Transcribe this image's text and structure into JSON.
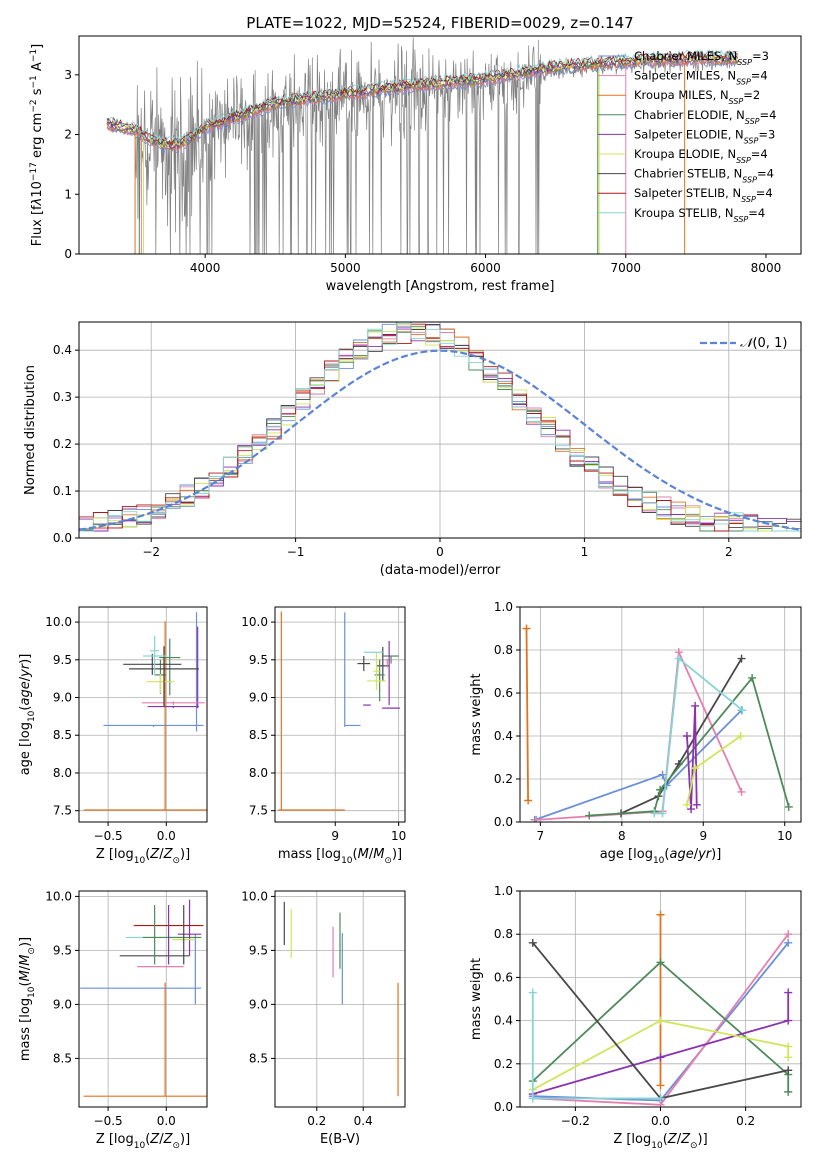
{
  "title": "PLATE=1022, MJD=52524, FIBERID=0029, z=0.147",
  "colors": {
    "grid": "#b0b0b0",
    "spectrum": "#808080",
    "normal": "#5b84d4"
  },
  "series_colors": [
    "#6a8fd8",
    "#e57fb0",
    "#e0731e",
    "#4d8a5a",
    "#8a32b0",
    "#cfe65a",
    "#484848",
    "#b01818",
    "#86d4d4"
  ],
  "chart_data": [
    {
      "id": "spectrum",
      "type": "line",
      "xlabel": "wavelength [Angstrom, rest frame]",
      "ylabel_html": "Flux [f<tspan font-style=\"italic\">λ</tspan>10<tspan baseline-shift=\"super\" font-size=\"9\">−17</tspan> erg cm<tspan baseline-shift=\"super\" font-size=\"9\">−2</tspan> s<tspan baseline-shift=\"super\" font-size=\"9\">−1</tspan> A<tspan baseline-shift=\"super\" font-size=\"9\">−1</tspan>]",
      "xlim": [
        3100,
        8250
      ],
      "ylim": [
        0,
        3.65
      ],
      "xticks": [
        4000,
        5000,
        6000,
        7000,
        8000
      ],
      "yticks": [
        0,
        1,
        2,
        3
      ],
      "grid": false,
      "legend_position": "top-right",
      "legend": [
        {
          "label_html": "Chabrier MILES, N<tspan baseline-shift=\"sub\" font-size=\"8\" font-style=\"italic\">SSP</tspan>=3"
        },
        {
          "label_html": "Salpeter MILES, N<tspan baseline-shift=\"sub\" font-size=\"8\" font-style=\"italic\">SSP</tspan>=4"
        },
        {
          "label_html": "Kroupa MILES, N<tspan baseline-shift=\"sub\" font-size=\"8\" font-style=\"italic\">SSP</tspan>=2"
        },
        {
          "label_html": "Chabrier ELODIE, N<tspan baseline-shift=\"sub\" font-size=\"8\" font-style=\"italic\">SSP</tspan>=4"
        },
        {
          "label_html": "Salpeter ELODIE, N<tspan baseline-shift=\"sub\" font-size=\"8\" font-style=\"italic\">SSP</tspan>=3"
        },
        {
          "label_html": "Kroupa ELODIE, N<tspan baseline-shift=\"sub\" font-size=\"8\" font-style=\"italic\">SSP</tspan>=4"
        },
        {
          "label_html": "Chabrier STELIB, N<tspan baseline-shift=\"sub\" font-size=\"8\" font-style=\"italic\">SSP</tspan>=4"
        },
        {
          "label_html": "Salpeter STELIB, N<tspan baseline-shift=\"sub\" font-size=\"8\" font-style=\"italic\">SSP</tspan>=4"
        },
        {
          "label_html": "Kroupa STELIB, N<tspan baseline-shift=\"sub\" font-size=\"8\" font-style=\"italic\">SSP</tspan>=4"
        }
      ],
      "continuum": [
        [
          3300,
          2.1
        ],
        [
          3400,
          2.05
        ],
        [
          3500,
          2.0
        ],
        [
          3600,
          1.85
        ],
        [
          3700,
          1.75
        ],
        [
          3800,
          1.75
        ],
        [
          3900,
          1.85
        ],
        [
          4000,
          2.05
        ],
        [
          4200,
          2.2
        ],
        [
          4500,
          2.45
        ],
        [
          5000,
          2.6
        ],
        [
          5500,
          2.75
        ],
        [
          6000,
          2.85
        ],
        [
          6500,
          3.05
        ],
        [
          7000,
          3.15
        ],
        [
          7500,
          3.2
        ],
        [
          7800,
          3.2
        ]
      ],
      "model_edges": [
        {
          "series": 2,
          "x": [
            3500,
            7420
          ]
        },
        {
          "series": 3,
          "x": [
            3530,
            6800
          ]
        },
        {
          "series": 1,
          "x": [
            3545,
            7000
          ]
        },
        {
          "series": 5,
          "x": [
            3560,
            6810
          ]
        }
      ]
    },
    {
      "id": "residuals",
      "type": "histogram",
      "xlabel": "(data-model)/error",
      "ylabel": "Normed distribution",
      "xlim": [
        -2.5,
        2.5
      ],
      "ylim": [
        0,
        0.46
      ],
      "xticks": [
        -2,
        -1,
        0,
        1,
        2
      ],
      "yticks": [
        0.0,
        0.1,
        0.2,
        0.3,
        0.4
      ],
      "grid": true,
      "bin_width": 0.1,
      "legend_label_html": "<tspan font-style=\"italic\">𝒩</tspan>(0, 1)",
      "legend_position": "top-right"
    },
    {
      "id": "age-vs-Z",
      "type": "errorbar",
      "xlabel_html": "Z [log<tspan baseline-shift=\"sub\" font-size=\"9\">10</tspan>(<tspan font-style=\"italic\">Z</tspan>/<tspan font-style=\"italic\">Z</tspan><tspan baseline-shift=\"sub\" font-size=\"9\">⊙</tspan>)]",
      "ylabel_html": "age  [log<tspan baseline-shift=\"sub\" font-size=\"9\">10</tspan>(<tspan font-style=\"italic\">age</tspan>/<tspan font-style=\"italic\">yr</tspan>)]",
      "xlim": [
        -0.75,
        0.35
      ],
      "ylim": [
        7.35,
        10.2
      ],
      "xticks": [
        -0.5,
        0.0
      ],
      "yticks": [
        7.5,
        8.0,
        8.5,
        9.0,
        9.5,
        10.0
      ],
      "grid": true,
      "points": [
        {
          "s": 0,
          "x": -0.11,
          "y": 8.63,
          "xerr": 0.43,
          "yerr": [
            0.02,
            0.0
          ]
        },
        {
          "s": 0,
          "x": 0.26,
          "y": 9.37,
          "xerr": 0.0,
          "yerr": [
            0.82,
            0.76
          ]
        },
        {
          "s": 2,
          "x": -0.01,
          "y": 7.51,
          "xerr": 0.7,
          "yerr": [
            0.0,
            2.5
          ]
        },
        {
          "s": 3,
          "x": 0.03,
          "y": 9.53,
          "xerr": 0.09,
          "yerr": [
            0.5,
            0.25
          ]
        },
        {
          "s": 3,
          "x": -0.05,
          "y": 9.3,
          "xerr": 0.05,
          "yerr": [
            0.25,
            0.2
          ]
        },
        {
          "s": 4,
          "x": 0.27,
          "y": 9.38,
          "xerr": 0.0,
          "yerr": [
            0.52,
            0.56
          ]
        },
        {
          "s": 4,
          "x": 0.06,
          "y": 8.88,
          "xerr": 0.22,
          "yerr": [
            0.02,
            0.0
          ]
        },
        {
          "s": 4,
          "x": 0.3,
          "y": 8.86,
          "xerr": 0.0,
          "yerr": [
            0.0,
            0.0
          ]
        },
        {
          "s": 1,
          "x": 0.06,
          "y": 8.93,
          "xerr": 0.27,
          "yerr": [
            0.03,
            0.02
          ]
        },
        {
          "s": 5,
          "x": -0.05,
          "y": 9.21,
          "xerr": 0.12,
          "yerr": [
            0.15,
            0.1
          ]
        },
        {
          "s": 6,
          "x": -0.12,
          "y": 9.44,
          "xerr": 0.25,
          "yerr": [
            0.14,
            0.14
          ]
        },
        {
          "s": 6,
          "x": -0.02,
          "y": 9.38,
          "xerr": 0.3,
          "yerr": [
            0.5,
            0.3
          ]
        },
        {
          "s": 8,
          "x": -0.1,
          "y": 9.55,
          "xerr": 0.1,
          "yerr": [
            0.25,
            0.27
          ]
        },
        {
          "s": 8,
          "x": -0.1,
          "y": 9.62,
          "xerr": 0.04,
          "yerr": [
            0.0,
            0.0
          ]
        }
      ]
    },
    {
      "id": "age-vs-mass",
      "type": "errorbar",
      "xlabel_html": "mass [log<tspan baseline-shift=\"sub\" font-size=\"9\">10</tspan>(<tspan font-style=\"italic\">M</tspan>/<tspan font-style=\"italic\">M</tspan><tspan baseline-shift=\"sub\" font-size=\"9\">⊙</tspan>)]",
      "xlim": [
        8.05,
        10.1
      ],
      "ylim": [
        7.35,
        10.2
      ],
      "xticks": [
        9,
        10
      ],
      "yticks": [
        7.5,
        8.0,
        8.5,
        9.0,
        9.5,
        10.0
      ],
      "grid": true,
      "points": [
        {
          "s": 2,
          "x": 8.15,
          "y": 7.51,
          "xerr": [
            0.05,
            1.0
          ],
          "yerr": [
            0.0,
            2.63
          ]
        },
        {
          "s": 0,
          "x": 9.15,
          "y": 8.63,
          "xerr": [
            0.0,
            0.25
          ],
          "yerr": [
            0.02,
            1.5
          ]
        },
        {
          "s": 4,
          "x": 9.5,
          "y": 8.9,
          "xerr": 0.06,
          "yerr": [
            0.0,
            0.0
          ]
        },
        {
          "s": 4,
          "x": 9.88,
          "y": 8.86,
          "xerr": 0.14,
          "yerr": [
            0.0,
            0.0
          ]
        },
        {
          "s": 6,
          "x": 9.45,
          "y": 9.45,
          "xerr": 0.1,
          "yerr": [
            0.1,
            0.1
          ]
        },
        {
          "s": 6,
          "x": 9.75,
          "y": 9.42,
          "xerr": 0.1,
          "yerr": [
            0.2,
            0.25
          ]
        },
        {
          "s": 3,
          "x": 9.7,
          "y": 9.3,
          "xerr": 0.08,
          "yerr": [
            0.35,
            0.2
          ]
        },
        {
          "s": 3,
          "x": 9.88,
          "y": 9.55,
          "xerr": 0.12,
          "yerr": [
            0.1,
            0.0
          ]
        },
        {
          "s": 5,
          "x": 9.65,
          "y": 9.22,
          "xerr": 0.15,
          "yerr": [
            0.0,
            0.0
          ]
        },
        {
          "s": 5,
          "x": 9.65,
          "y": 9.35,
          "xerr": 0.05,
          "yerr": [
            0.25,
            0.25
          ]
        },
        {
          "s": 1,
          "x": 9.82,
          "y": 9.5,
          "xerr": 0.03,
          "yerr": [
            0.1,
            0.0
          ]
        },
        {
          "s": 8,
          "x": 9.6,
          "y": 9.6,
          "xerr": 0.15,
          "yerr": [
            0.0,
            0.0
          ]
        },
        {
          "s": 4,
          "x": 9.85,
          "y": 9.35,
          "xerr": 0.0,
          "yerr": [
            0.45,
            0.4
          ]
        }
      ]
    },
    {
      "id": "mass-weight-vs-age",
      "type": "line",
      "xlabel_html": "age  [log<tspan baseline-shift=\"sub\" font-size=\"9\">10</tspan>(<tspan font-style=\"italic\">age</tspan>/<tspan font-style=\"italic\">yr</tspan>)]",
      "ylabel": "mass weight",
      "xlim": [
        6.75,
        10.2
      ],
      "ylim": [
        0.0,
        1.0
      ],
      "xticks": [
        7,
        8,
        9,
        10
      ],
      "yticks": [
        0.0,
        0.2,
        0.4,
        0.6,
        0.8,
        1.0
      ],
      "grid": true,
      "series": [
        {
          "s": 2,
          "x": [
            6.83,
            6.85
          ],
          "y": [
            0.9,
            0.1
          ]
        },
        {
          "s": 0,
          "x": 6.93,
          "y": 0.01,
          "x2": [
            6.93,
            8.5,
            8.55,
            9.47
          ],
          "y2": [
            0.01,
            0.22,
            0.17,
            0.52
          ]
        },
        {
          "s": 1,
          "x": [
            6.95,
            8.5,
            8.7,
            9.47
          ],
          "y": [
            0.01,
            0.05,
            0.79,
            0.14
          ]
        },
        {
          "s": 6,
          "x": [
            7.99,
            8.45,
            8.7,
            9.47
          ],
          "y": [
            0.04,
            0.12,
            0.27,
            0.76
          ]
        },
        {
          "s": 3,
          "x": [
            7.6,
            8.4,
            8.47,
            9.6,
            10.05
          ],
          "y": [
            0.03,
            0.05,
            0.15,
            0.67,
            0.07
          ]
        },
        {
          "s": 4,
          "x": [
            8.8,
            8.85,
            8.9,
            8.92
          ],
          "y": [
            0.4,
            0.06,
            0.54,
            0.08
          ]
        },
        {
          "s": 5,
          "x": [
            8.8,
            8.9,
            9.46
          ],
          "y": [
            0.08,
            0.25,
            0.4
          ]
        },
        {
          "s": 8,
          "x": [
            8.4,
            8.5,
            8.7,
            9.48
          ],
          "y": [
            0.04,
            0.04,
            0.76,
            0.52
          ]
        }
      ]
    },
    {
      "id": "mass-vs-Z",
      "type": "errorbar",
      "xlabel_html": "Z [log<tspan baseline-shift=\"sub\" font-size=\"9\">10</tspan>(<tspan font-style=\"italic\">Z</tspan>/<tspan font-style=\"italic\">Z</tspan><tspan baseline-shift=\"sub\" font-size=\"9\">⊙</tspan>)]",
      "ylabel_html": "mass [log<tspan baseline-shift=\"sub\" font-size=\"9\">10</tspan>(<tspan font-style=\"italic\">M</tspan>/<tspan font-style=\"italic\">M</tspan><tspan baseline-shift=\"sub\" font-size=\"9\">⊙</tspan>)]",
      "xlim": [
        -0.75,
        0.35
      ],
      "ylim": [
        8.05,
        10.05
      ],
      "xticks": [
        -0.5,
        0.0
      ],
      "yticks": [
        8.5,
        9.0,
        9.5,
        10.0
      ],
      "grid": true,
      "points": [
        {
          "s": 2,
          "x": -0.01,
          "y": 8.15,
          "xerr": 0.7,
          "yerr": [
            0.0,
            1.05
          ]
        },
        {
          "s": 0,
          "x": -0.22,
          "y": 9.15,
          "xerr": 0.52,
          "yerr": [
            0.0,
            0.0
          ]
        },
        {
          "s": 0,
          "x": 0.25,
          "y": 9.45,
          "xerr": 0.0,
          "yerr": [
            0.45,
            0.2
          ]
        },
        {
          "s": 6,
          "x": -0.1,
          "y": 9.45,
          "xerr": 0.3,
          "yerr": [
            0.0,
            0.0
          ]
        },
        {
          "s": 1,
          "x": -0.05,
          "y": 9.35,
          "xerr": 0.2,
          "yerr": [
            0.0,
            0.0
          ]
        },
        {
          "s": 8,
          "x": -0.1,
          "y": 9.62,
          "xerr": 0.25,
          "yerr": [
            0.0,
            0.0
          ]
        },
        {
          "s": 3,
          "x": 0.05,
          "y": 9.62,
          "xerr": 0.25,
          "yerr": [
            0.0,
            0.0
          ]
        },
        {
          "s": 4,
          "x": 0.2,
          "y": 9.65,
          "xerr": 0.1,
          "yerr": [
            0.2,
            0.32
          ]
        },
        {
          "s": 7,
          "x": 0.02,
          "y": 9.73,
          "xerr": 0.3,
          "yerr": [
            0.0,
            0.0
          ]
        },
        {
          "s": 5,
          "x": 0.15,
          "y": 9.6,
          "xerr": 0.1,
          "yerr": [
            0.0,
            0.0
          ]
        },
        {
          "s": 3,
          "x": -0.1,
          "y": 9.62,
          "xerr": 0.0,
          "yerr": [
            0.25,
            0.3
          ]
        },
        {
          "s": 4,
          "x": 0.02,
          "y": 9.62,
          "xerr": 0.0,
          "yerr": [
            0.25,
            0.3
          ]
        },
        {
          "s": 6,
          "x": 0.15,
          "y": 9.62,
          "xerr": 0.0,
          "yerr": [
            0.25,
            0.3
          ]
        }
      ]
    },
    {
      "id": "mass-vs-ebv",
      "type": "errorbar",
      "xlabel": "E(B-V)",
      "xlim": [
        0.02,
        0.58
      ],
      "ylim": [
        8.05,
        10.05
      ],
      "xticks": [
        0.2,
        0.4
      ],
      "yticks": [
        8.5,
        9.0,
        9.5,
        10.0
      ],
      "grid": true,
      "points": [
        {
          "s": 6,
          "x": 0.06,
          "y": 9.75,
          "xerr": 0.0,
          "yerr": [
            0.2,
            0.2
          ]
        },
        {
          "s": 5,
          "x": 0.09,
          "y": 9.65,
          "xerr": 0.0,
          "yerr": [
            0.22,
            0.23
          ]
        },
        {
          "s": 1,
          "x": 0.27,
          "y": 9.45,
          "xerr": 0.0,
          "yerr": [
            0.2,
            0.27
          ]
        },
        {
          "s": 3,
          "x": 0.3,
          "y": 9.55,
          "xerr": 0.0,
          "yerr": [
            0.22,
            0.3
          ]
        },
        {
          "s": 0,
          "x": 0.31,
          "y": 9.33,
          "xerr": 0.0,
          "yerr": [
            0.33,
            0.33
          ]
        },
        {
          "s": 2,
          "x": 0.55,
          "y": 8.68,
          "xerr": 0.0,
          "yerr": [
            0.53,
            0.52
          ]
        }
      ]
    },
    {
      "id": "mass-weight-vs-Z",
      "type": "line",
      "xlabel_html": "Z [log<tspan baseline-shift=\"sub\" font-size=\"9\">10</tspan>(<tspan font-style=\"italic\">Z</tspan>/<tspan font-style=\"italic\">Z</tspan><tspan baseline-shift=\"sub\" font-size=\"9\">⊙</tspan>)]",
      "ylabel": "mass weight",
      "xlim": [
        -0.33,
        0.33
      ],
      "ylim": [
        0.0,
        1.0
      ],
      "xticks": [
        -0.2,
        0.0,
        0.2
      ],
      "yticks": [
        0.0,
        0.2,
        0.4,
        0.6,
        0.8,
        1.0
      ],
      "grid": true,
      "series": [
        {
          "s": 0,
          "x": [
            -0.3,
            0.0,
            0.3
          ],
          "y": [
            0.05,
            0.03,
            0.76
          ]
        },
        {
          "s": 1,
          "x": [
            -0.3,
            0.0,
            0.3
          ],
          "y": [
            0.04,
            0.01,
            0.8
          ]
        },
        {
          "s": 2,
          "x": [
            0.0,
            0.0
          ],
          "y": [
            0.89,
            0.1
          ]
        },
        {
          "s": 3,
          "x": [
            -0.3,
            0.0,
            0.3,
            0.3
          ],
          "y": [
            0.12,
            0.67,
            0.15,
            0.07
          ]
        },
        {
          "s": 4,
          "x": [
            -0.3,
            0.0,
            0.3,
            0.3
          ],
          "y": [
            0.06,
            0.23,
            0.4,
            0.53
          ]
        },
        {
          "s": 5,
          "x": [
            -0.3,
            0.0,
            0.3,
            0.3
          ],
          "y": [
            0.08,
            0.4,
            0.28,
            0.23
          ]
        },
        {
          "s": 6,
          "x": [
            -0.3,
            0.0,
            0.3
          ],
          "y": [
            0.76,
            0.04,
            0.17
          ]
        },
        {
          "s": 8,
          "x": [
            -0.3,
            -0.3,
            0.0
          ],
          "y": [
            0.53,
            0.04,
            0.04
          ]
        }
      ]
    }
  ]
}
